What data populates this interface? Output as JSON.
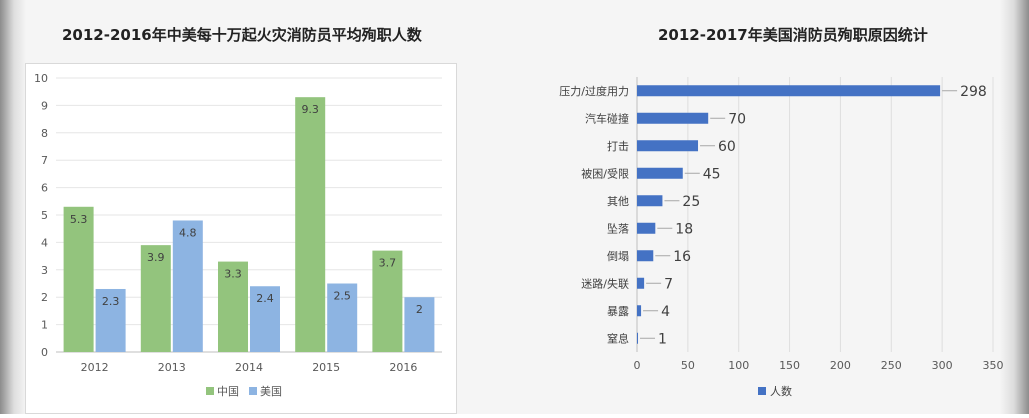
{
  "titles": {
    "left": "2012-2016年中美每十万起火灾消防员平均殉职人数",
    "right": "2012-2017年美国消防员殉职原因统计"
  },
  "chart_data": [
    {
      "type": "bar",
      "categories": [
        "2012",
        "2013",
        "2014",
        "2015",
        "2016"
      ],
      "series": [
        {
          "name": "中国",
          "values": [
            5.3,
            3.9,
            3.3,
            9.3,
            3.7
          ],
          "color": "#93c47d"
        },
        {
          "name": "美国",
          "values": [
            2.3,
            4.8,
            2.4,
            2.5,
            2.0
          ],
          "color": "#8db4e2"
        }
      ],
      "ylim": [
        0,
        10
      ],
      "yticks": [
        0,
        1,
        2,
        3,
        4,
        5,
        6,
        7,
        8,
        9,
        10
      ],
      "grid": true,
      "legend_position": "bottom"
    },
    {
      "type": "bar",
      "orientation": "horizontal",
      "categories": [
        "压力/过度用力",
        "汽车碰撞",
        "打击",
        "被困/受限",
        "其他",
        "坠落",
        "倒塌",
        "迷路/失联",
        "暴露",
        "窒息"
      ],
      "series": [
        {
          "name": "人数",
          "values": [
            298,
            70,
            60,
            45,
            25,
            18,
            16,
            7,
            4,
            1
          ],
          "color": "#4472c4"
        }
      ],
      "xlim": [
        0,
        350
      ],
      "xticks": [
        0,
        50,
        100,
        150,
        200,
        250,
        300,
        350
      ],
      "grid": true,
      "legend_position": "bottom"
    }
  ]
}
